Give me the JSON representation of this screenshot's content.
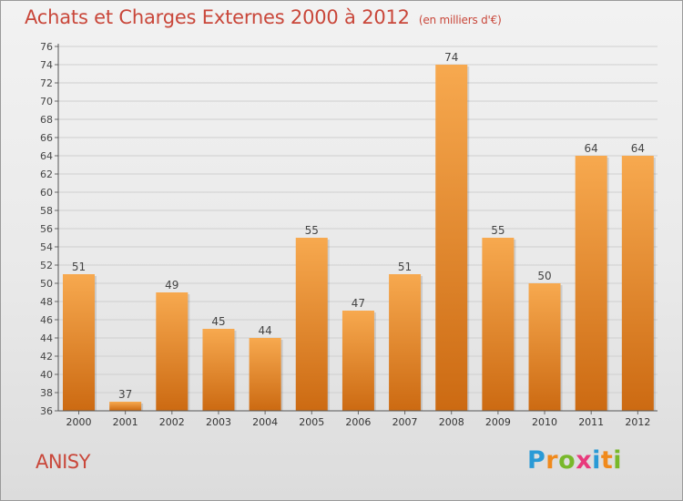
{
  "title": "Achats et Charges Externes 2000 à 2012",
  "subtitle": "(en milliers d'€)",
  "commune": "ANISY",
  "logo": {
    "letters": [
      "P",
      "r",
      "o",
      "x",
      "i",
      "t",
      "i"
    ],
    "colors": [
      "#2a9ad6",
      "#f08a1c",
      "#78b82a",
      "#e83a7c",
      "#2a9ad6",
      "#f08a1c",
      "#78b82a"
    ]
  },
  "colors": {
    "title": "#c9473a",
    "bar_top": "#f7a94f",
    "bar_bottom": "#cc6a12",
    "grid": "#cfcfcf"
  },
  "chart_data": {
    "type": "bar",
    "categories": [
      "2000",
      "2001",
      "2002",
      "2003",
      "2004",
      "2005",
      "2006",
      "2007",
      "2008",
      "2009",
      "2010",
      "2011",
      "2012"
    ],
    "values": [
      51,
      37,
      49,
      45,
      44,
      55,
      47,
      51,
      74,
      55,
      50,
      64,
      64
    ],
    "ylim": [
      36,
      76
    ],
    "yticks": [
      36,
      38,
      40,
      42,
      44,
      46,
      48,
      50,
      52,
      54,
      56,
      58,
      60,
      62,
      64,
      66,
      68,
      70,
      72,
      74,
      76
    ],
    "grid": true,
    "data_labels": true
  }
}
